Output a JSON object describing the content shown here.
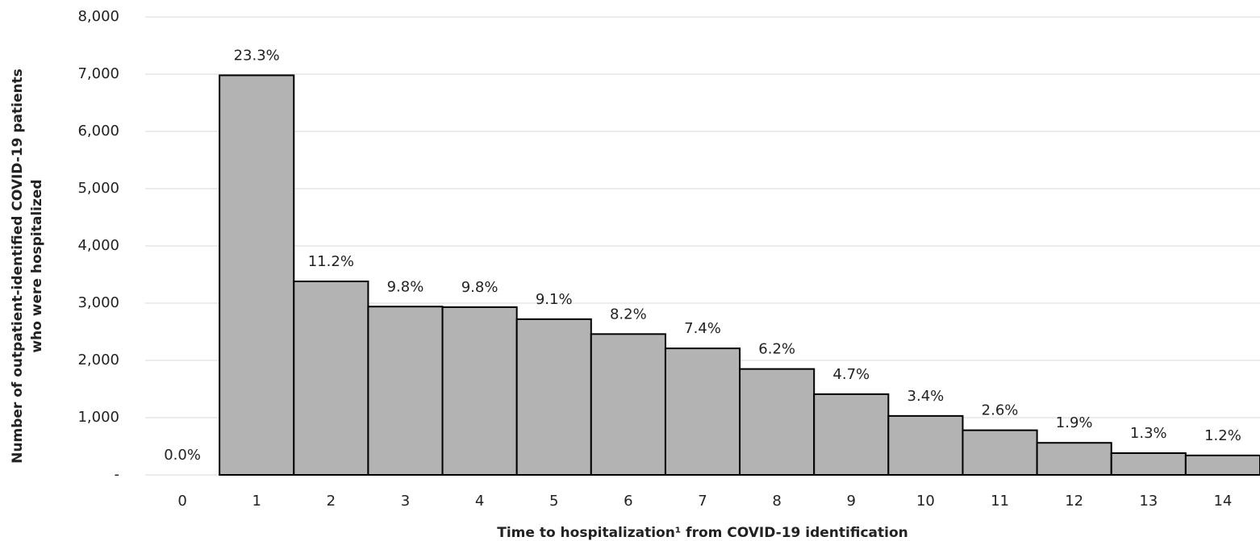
{
  "chart_data": {
    "type": "bar",
    "x_label": "Time to hospitalization¹ from COVID-19 identification",
    "y_label": [
      "Number of outpatient-identified COVID-19 patients",
      "who were hospitalized"
    ],
    "categories": [
      "0",
      "1",
      "2",
      "3",
      "4",
      "5",
      "6",
      "7",
      "8",
      "9",
      "10",
      "11",
      "12",
      "13",
      "14"
    ],
    "values": [
      0,
      6980,
      3380,
      2940,
      2930,
      2720,
      2460,
      2210,
      1850,
      1410,
      1030,
      780,
      560,
      380,
      340
    ],
    "percent_labels": [
      "0.0%",
      "23.3%",
      "11.2%",
      "9.8%",
      "9.8%",
      "9.1%",
      "8.2%",
      "7.4%",
      "6.2%",
      "4.7%",
      "3.4%",
      "2.6%",
      "1.9%",
      "1.3%",
      "1.2%"
    ],
    "color": "#b3b3b3",
    "ylim": [
      0,
      8000
    ],
    "yticks": [
      {
        "value": 0,
        "label": "-"
      },
      {
        "value": 1000,
        "label": "1,000"
      },
      {
        "value": 2000,
        "label": "2,000"
      },
      {
        "value": 3000,
        "label": "3,000"
      },
      {
        "value": 4000,
        "label": "4,000"
      },
      {
        "value": 5000,
        "label": "5,000"
      },
      {
        "value": 6000,
        "label": "6,000"
      },
      {
        "value": 7000,
        "label": "7,000"
      },
      {
        "value": 8000,
        "label": "8,000"
      }
    ],
    "grid": true
  }
}
